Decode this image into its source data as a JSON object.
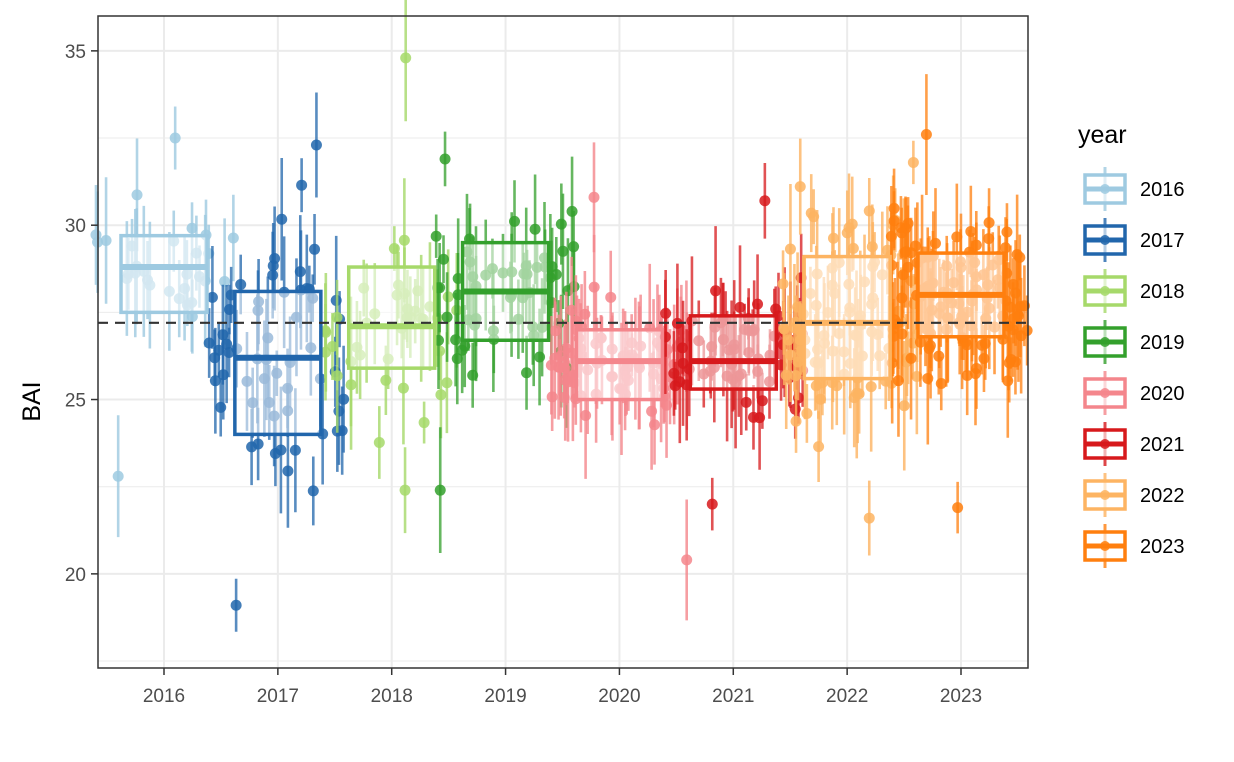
{
  "chart_data": {
    "type": "boxplot",
    "xlabel": "",
    "ylabel": "BAI",
    "ylim": [
      17.3,
      36.0
    ],
    "yticks": [
      20,
      25,
      30,
      35
    ],
    "reference_line": {
      "y": 27.2,
      "style": "dashed"
    },
    "legend": {
      "title": "year",
      "position": "right"
    },
    "grid": true,
    "categories": [
      "2016",
      "2017",
      "2018",
      "2019",
      "2020",
      "2021",
      "2022",
      "2023"
    ],
    "series": [
      {
        "name": "2016",
        "color": "#9ecae1",
        "box": {
          "q1": 27.5,
          "median": 28.8,
          "q3": 29.7
        },
        "n_points": 30,
        "point_min": 22.8,
        "point_max": 32.5
      },
      {
        "name": "2017",
        "color": "#2166ac",
        "box": {
          "q1": 24.0,
          "median": 26.2,
          "q3": 28.1
        },
        "n_points": 60,
        "point_min": 19.1,
        "point_max": 32.3
      },
      {
        "name": "2018",
        "color": "#a6d96a",
        "box": {
          "q1": 25.9,
          "median": 27.1,
          "q3": 28.8
        },
        "n_points": 40,
        "point_min": 22.4,
        "point_max": 34.8
      },
      {
        "name": "2019",
        "color": "#33a02c",
        "box": {
          "q1": 26.7,
          "median": 28.1,
          "q3": 29.5
        },
        "n_points": 60,
        "point_min": 22.4,
        "point_max": 31.9
      },
      {
        "name": "2020",
        "color": "#f4868c",
        "box": {
          "q1": 25.0,
          "median": 26.1,
          "q3": 27.0
        },
        "n_points": 80,
        "point_min": 20.4,
        "point_max": 30.8
      },
      {
        "name": "2021",
        "color": "#d7191c",
        "box": {
          "q1": 25.3,
          "median": 26.1,
          "q3": 27.4
        },
        "n_points": 70,
        "point_min": 22.0,
        "point_max": 30.7
      },
      {
        "name": "2022",
        "color": "#fdb462",
        "box": {
          "q1": 25.6,
          "median": 27.2,
          "q3": 29.1
        },
        "n_points": 100,
        "point_min": 21.6,
        "point_max": 31.8
      },
      {
        "name": "2023",
        "color": "#ff7f0e",
        "box": {
          "q1": 26.8,
          "median": 28.0,
          "q3": 29.2
        },
        "n_points": 120,
        "point_min": 21.9,
        "point_max": 32.6
      }
    ]
  }
}
